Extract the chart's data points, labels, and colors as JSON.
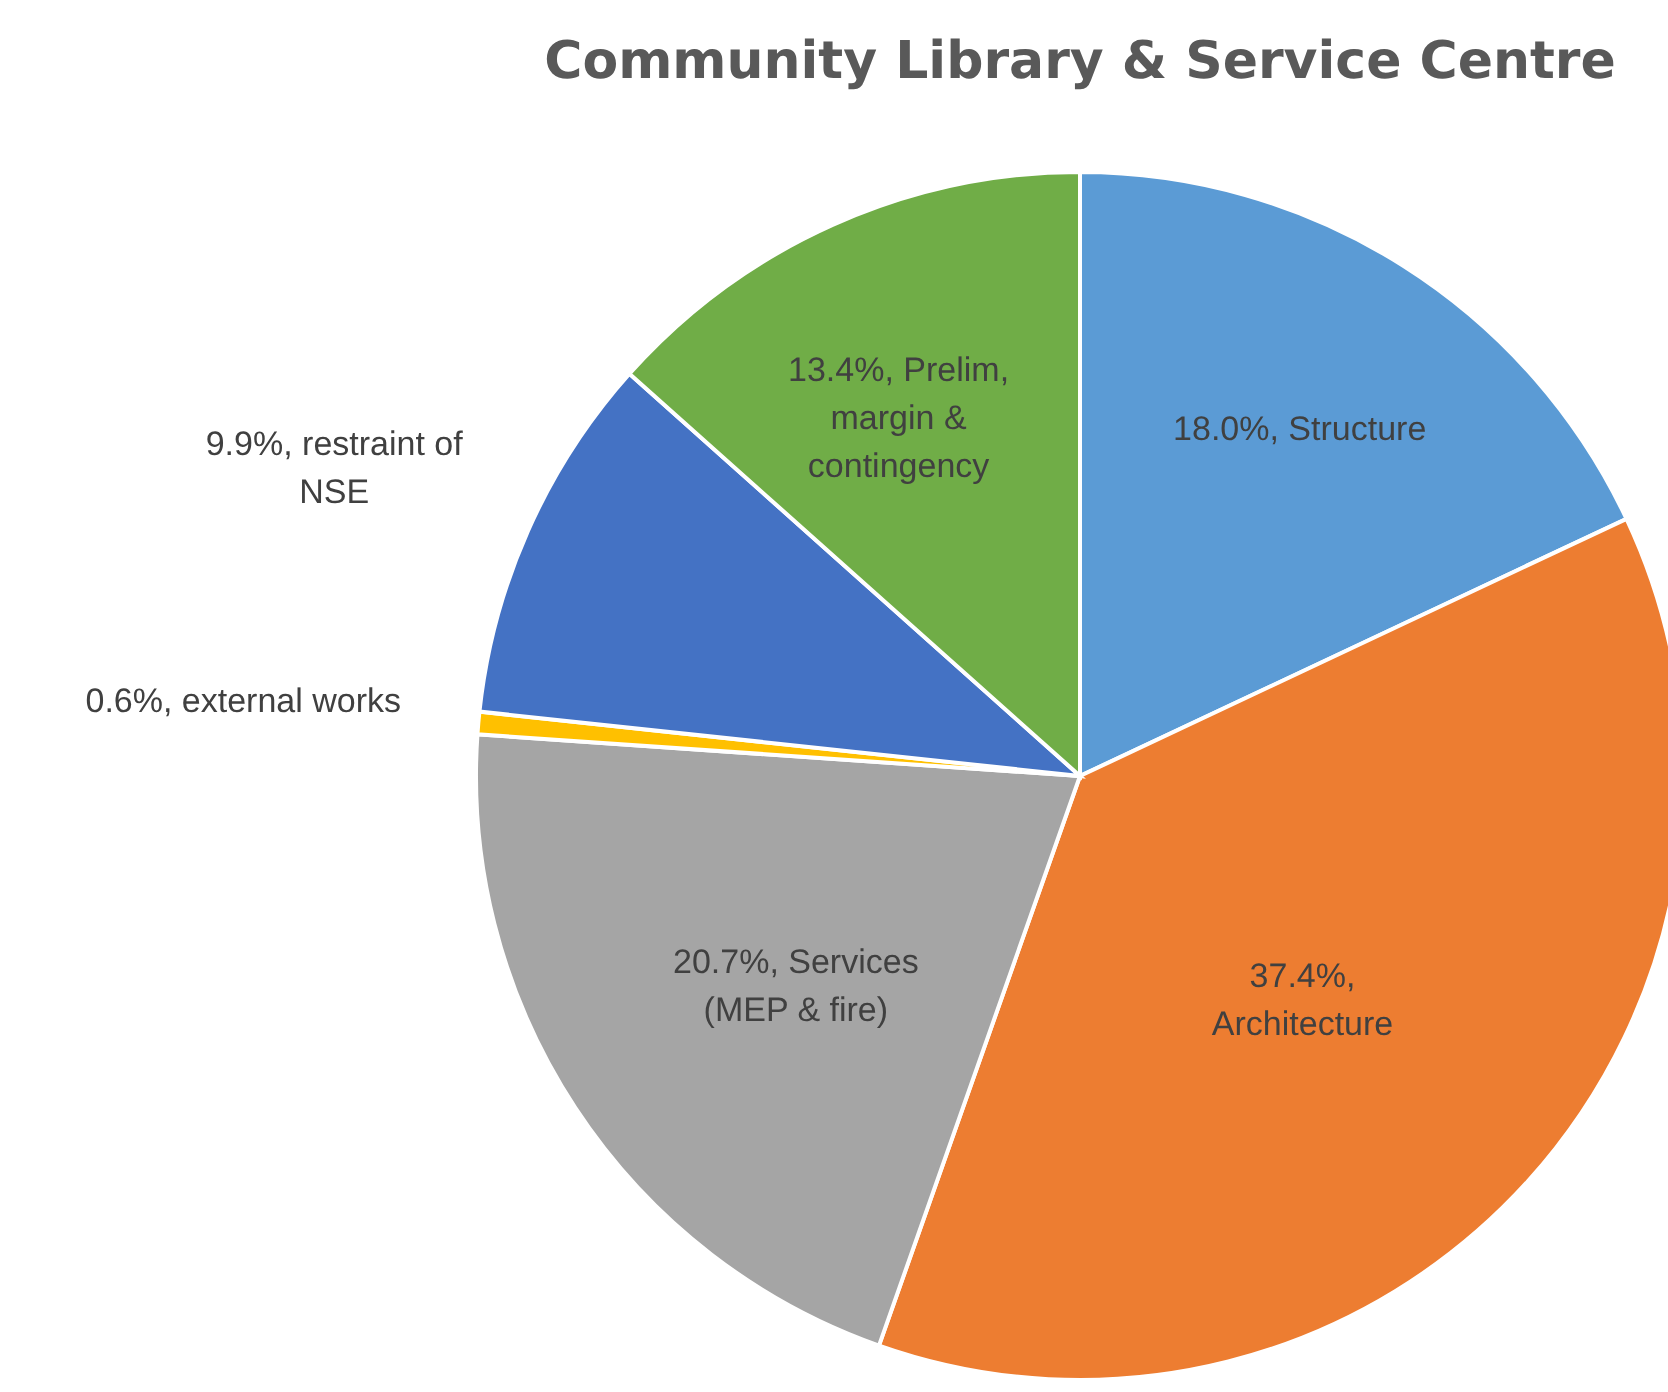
{
  "chart_data": {
    "type": "pie",
    "title": "Community Library & Service Centre",
    "categories": [
      "Structure",
      "Architecture",
      "Services (MEP & fire)",
      "external works",
      "restraint of NSE",
      "Prelim, margin & contingency"
    ],
    "values": [
      18.0,
      37.4,
      20.7,
      0.6,
      9.9,
      13.4
    ],
    "colors": [
      "#5b9bd5",
      "#ed7d31",
      "#a5a5a5",
      "#ffc000",
      "#4472c4",
      "#70ad47"
    ],
    "value_labels": [
      "18.0%,",
      "37.4%,",
      "20.7%,",
      "0.6%,",
      "9.9%,",
      "13.4%,"
    ]
  }
}
